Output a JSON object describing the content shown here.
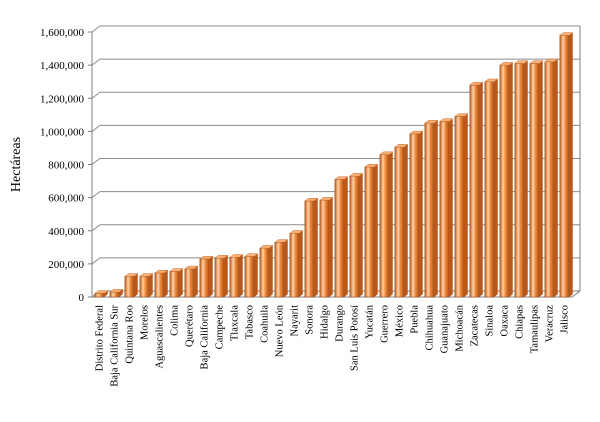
{
  "chart_data": {
    "type": "bar",
    "ylabel": "Hectáreas",
    "xlabel": "",
    "ylim": [
      0,
      1600000
    ],
    "y_ticks": [
      0,
      200000,
      400000,
      600000,
      800000,
      1000000,
      1200000,
      1400000,
      1600000
    ],
    "y_tick_labels": [
      "0",
      "200,000",
      "400,000",
      "600,000",
      "800,000",
      "1,000,000",
      "1,200,000",
      "1,400,000",
      "1,600,000"
    ],
    "grid": true,
    "style": "3d-cylinder",
    "categories": [
      "Distrito Federal",
      "Baja California Sur",
      "Quintana Roo",
      "Morelos",
      "Aguascalientes",
      "Colima",
      "Querétaro",
      "Baja California",
      "Campeche",
      "Tlaxcala",
      "Tabasco",
      "Coahuila",
      "Nuevo León",
      "Nayarit",
      "Sonora",
      "Hidalgo",
      "Durango",
      "San Luis Potosí",
      "Yucatán",
      "Guerrero",
      "México",
      "Puebla",
      "Chihuahua",
      "Guanajuato",
      "Michoacán",
      "Zacatecas",
      "Sinaloa",
      "Oaxaca",
      "Chiapas",
      "Tamaulipas",
      "Veracruz",
      "Jalisco"
    ],
    "values": [
      22000,
      30000,
      125000,
      125000,
      145000,
      155000,
      170000,
      230000,
      235000,
      240000,
      245000,
      295000,
      330000,
      385000,
      580000,
      585000,
      710000,
      730000,
      785000,
      860000,
      905000,
      985000,
      1050000,
      1060000,
      1090000,
      1280000,
      1300000,
      1400000,
      1410000,
      1410000,
      1420000,
      1580000
    ],
    "colors": {
      "bar": "#f08a3a",
      "bar_dark": "#b9581a",
      "bar_light": "#fcd2a8",
      "top": "#f7b27a",
      "grid": "#8c8c8c",
      "wall": "#ffffff"
    }
  }
}
